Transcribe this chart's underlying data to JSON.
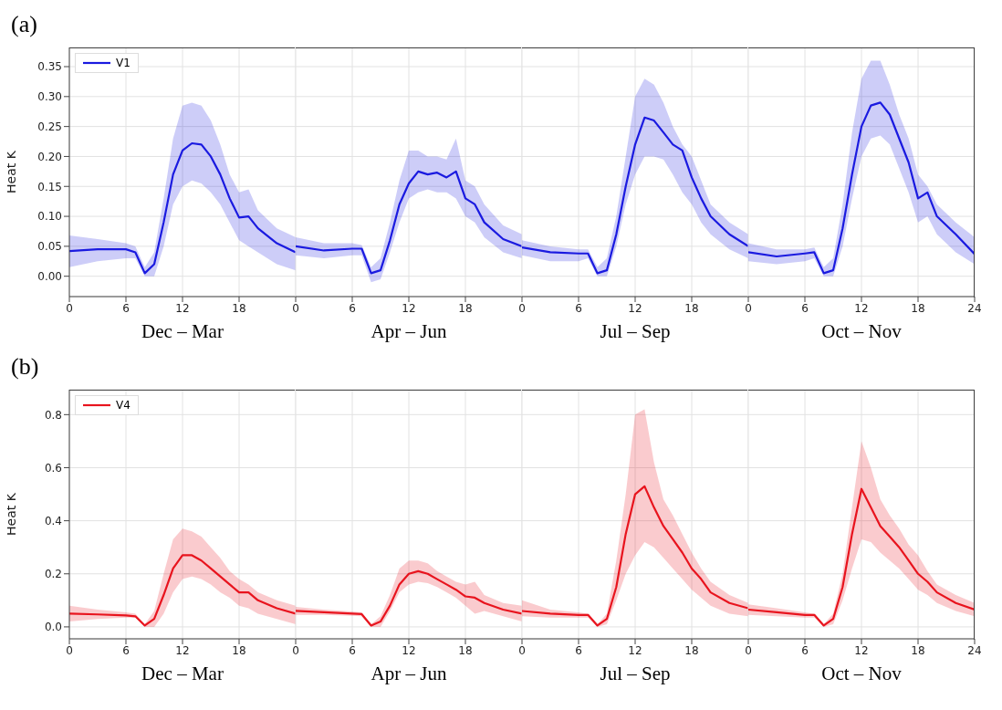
{
  "chart_data": [
    {
      "type": "line",
      "title": "(a)",
      "ylabel": "Heat K",
      "xlabel": "Dec – Mar",
      "ylim": [
        -0.034,
        0.382
      ],
      "yticks": [
        {
          "value": 0,
          "label": "0.00"
        },
        {
          "value": 0.05,
          "label": "0.05"
        },
        {
          "value": 0.1,
          "label": "0.10"
        },
        {
          "value": 0.15,
          "label": "0.15"
        },
        {
          "value": 0.2,
          "label": "0.20"
        },
        {
          "value": 0.25,
          "label": "0.25"
        },
        {
          "value": 0.3,
          "label": "0.30"
        },
        {
          "value": 0.35,
          "label": "0.35"
        }
      ],
      "xlim": [
        0,
        24
      ],
      "xticks": [
        0,
        6,
        12,
        18
      ],
      "x": [
        0,
        3,
        6,
        7,
        8,
        9,
        10,
        11,
        12,
        13,
        14,
        15,
        16,
        17,
        18,
        19,
        20,
        22,
        24
      ],
      "series": [
        {
          "name": "V1",
          "color": "#1a1ae0",
          "values": [
            0.042,
            0.045,
            0.045,
            0.04,
            0.005,
            0.02,
            0.09,
            0.17,
            0.21,
            0.222,
            0.22,
            0.2,
            0.17,
            0.13,
            0.098,
            0.1,
            0.08,
            0.055,
            0.04
          ],
          "lower": [
            0.015,
            0.025,
            0.03,
            0.03,
            0,
            0,
            0.05,
            0.12,
            0.15,
            0.16,
            0.155,
            0.14,
            0.12,
            0.09,
            0.06,
            0.05,
            0.04,
            0.02,
            0.01
          ],
          "upper": [
            0.068,
            0.062,
            0.055,
            0.05,
            0.015,
            0.04,
            0.13,
            0.23,
            0.285,
            0.29,
            0.285,
            0.26,
            0.22,
            0.17,
            0.14,
            0.145,
            0.11,
            0.08,
            0.065
          ]
        }
      ],
      "grid": true,
      "legend": "top left"
    },
    {
      "type": "line",
      "xlabel": "Apr – Jun",
      "ylim": [
        -0.034,
        0.382
      ],
      "yticks": [
        0,
        0.05,
        0.1,
        0.15,
        0.2,
        0.25,
        0.3,
        0.35
      ],
      "xlim": [
        0,
        24
      ],
      "xticks": [
        0,
        6,
        12,
        18
      ],
      "tick_labels": "x",
      "x": [
        0,
        3,
        6,
        7,
        8,
        9,
        10,
        11,
        12,
        13,
        14,
        15,
        16,
        17,
        18,
        19,
        20,
        22,
        24
      ],
      "series": [
        {
          "color": "#1a1ae0",
          "values": [
            0.05,
            0.043,
            0.046,
            0.046,
            0.005,
            0.01,
            0.06,
            0.12,
            0.155,
            0.175,
            0.17,
            0.173,
            0.165,
            0.175,
            0.13,
            0.12,
            0.09,
            0.062,
            0.05
          ],
          "lower": [
            0.035,
            0.03,
            0.035,
            0.035,
            -0.01,
            -0.005,
            0.04,
            0.09,
            0.13,
            0.14,
            0.145,
            0.14,
            0.14,
            0.13,
            0.1,
            0.09,
            0.065,
            0.04,
            0.03
          ],
          "upper": [
            0.065,
            0.055,
            0.055,
            0.052,
            0.015,
            0.03,
            0.09,
            0.16,
            0.21,
            0.21,
            0.2,
            0.2,
            0.195,
            0.23,
            0.16,
            0.15,
            0.12,
            0.085,
            0.07
          ]
        }
      ],
      "grid": true
    },
    {
      "type": "line",
      "xlabel": "Jul – Sep",
      "ylim": [
        -0.034,
        0.382
      ],
      "yticks": [
        0,
        0.05,
        0.1,
        0.15,
        0.2,
        0.25,
        0.3,
        0.35
      ],
      "xlim": [
        0,
        24
      ],
      "xticks": [
        0,
        6,
        12,
        18
      ],
      "tick_labels": "x",
      "x": [
        0,
        3,
        6,
        7,
        8,
        9,
        10,
        11,
        12,
        13,
        14,
        15,
        16,
        17,
        18,
        19,
        20,
        22,
        24
      ],
      "series": [
        {
          "color": "#1a1ae0",
          "values": [
            0.048,
            0.04,
            0.038,
            0.038,
            0.005,
            0.01,
            0.07,
            0.15,
            0.22,
            0.265,
            0.26,
            0.24,
            0.22,
            0.21,
            0.165,
            0.13,
            0.1,
            0.07,
            0.05
          ],
          "lower": [
            0.035,
            0.025,
            0.025,
            0.03,
            0,
            0,
            0.05,
            0.12,
            0.17,
            0.2,
            0.2,
            0.195,
            0.17,
            0.14,
            0.12,
            0.09,
            0.07,
            0.045,
            0.03
          ],
          "upper": [
            0.06,
            0.05,
            0.045,
            0.045,
            0.015,
            0.03,
            0.1,
            0.2,
            0.3,
            0.33,
            0.32,
            0.29,
            0.25,
            0.22,
            0.2,
            0.16,
            0.12,
            0.09,
            0.07
          ]
        }
      ],
      "grid": true
    },
    {
      "type": "line",
      "xlabel": "Oct – Nov",
      "ylim": [
        -0.034,
        0.382
      ],
      "yticks": [
        0,
        0.05,
        0.1,
        0.15,
        0.2,
        0.25,
        0.3,
        0.35
      ],
      "xlim": [
        0,
        24
      ],
      "xticks": [
        0,
        6,
        12,
        18,
        24
      ],
      "tick_labels": "x",
      "x": [
        0,
        3,
        6,
        7,
        8,
        9,
        10,
        11,
        12,
        13,
        14,
        15,
        16,
        17,
        18,
        19,
        20,
        22,
        24
      ],
      "series": [
        {
          "color": "#1a1ae0",
          "values": [
            0.04,
            0.033,
            0.038,
            0.04,
            0.005,
            0.01,
            0.08,
            0.17,
            0.25,
            0.285,
            0.29,
            0.27,
            0.23,
            0.19,
            0.13,
            0.14,
            0.1,
            0.07,
            0.037
          ],
          "lower": [
            0.025,
            0.02,
            0.025,
            0.03,
            0,
            0,
            0.05,
            0.13,
            0.2,
            0.23,
            0.235,
            0.22,
            0.18,
            0.14,
            0.09,
            0.1,
            0.07,
            0.04,
            0.02
          ],
          "upper": [
            0.055,
            0.045,
            0.045,
            0.048,
            0.015,
            0.03,
            0.12,
            0.24,
            0.33,
            0.36,
            0.36,
            0.32,
            0.27,
            0.23,
            0.17,
            0.15,
            0.12,
            0.09,
            0.065
          ]
        }
      ],
      "grid": true
    },
    {
      "type": "line",
      "title": "(b)",
      "ylabel": "Heat K",
      "xlabel": "Dec – Mar",
      "ylim": [
        -0.045,
        0.894
      ],
      "yticks": [
        {
          "value": 0,
          "label": "0.0"
        },
        {
          "value": 0.2,
          "label": "0.2"
        },
        {
          "value": 0.4,
          "label": "0.4"
        },
        {
          "value": 0.6,
          "label": "0.6"
        },
        {
          "value": 0.8,
          "label": "0.8"
        }
      ],
      "xlim": [
        0,
        24
      ],
      "xticks": [
        0,
        6,
        12,
        18
      ],
      "x": [
        0,
        3,
        6,
        7,
        8,
        9,
        10,
        11,
        12,
        13,
        14,
        15,
        16,
        17,
        18,
        19,
        20,
        22,
        24
      ],
      "series": [
        {
          "name": "V4",
          "color": "#e8141e",
          "values": [
            0.05,
            0.047,
            0.043,
            0.04,
            0.005,
            0.03,
            0.12,
            0.22,
            0.27,
            0.27,
            0.25,
            0.22,
            0.19,
            0.16,
            0.13,
            0.13,
            0.1,
            0.07,
            0.05
          ],
          "lower": [
            0.02,
            0.03,
            0.035,
            0.035,
            0,
            0,
            0.05,
            0.13,
            0.18,
            0.19,
            0.18,
            0.16,
            0.13,
            0.11,
            0.08,
            0.07,
            0.05,
            0.03,
            0.01
          ],
          "upper": [
            0.08,
            0.065,
            0.055,
            0.05,
            0.01,
            0.06,
            0.2,
            0.33,
            0.37,
            0.36,
            0.34,
            0.3,
            0.26,
            0.21,
            0.18,
            0.16,
            0.13,
            0.1,
            0.08
          ]
        }
      ],
      "grid": true,
      "legend": "top left"
    },
    {
      "type": "line",
      "xlabel": "Apr – Jun",
      "ylim": [
        -0.045,
        0.894
      ],
      "yticks": [
        0,
        0.2,
        0.4,
        0.6,
        0.8
      ],
      "xlim": [
        0,
        24
      ],
      "xticks": [
        0,
        6,
        12,
        18
      ],
      "tick_labels": "x",
      "x": [
        0,
        3,
        6,
        7,
        8,
        9,
        10,
        11,
        12,
        13,
        14,
        15,
        16,
        17,
        18,
        19,
        20,
        22,
        24
      ],
      "series": [
        {
          "color": "#e8141e",
          "values": [
            0.06,
            0.055,
            0.05,
            0.048,
            0.005,
            0.02,
            0.08,
            0.16,
            0.2,
            0.21,
            0.2,
            0.18,
            0.16,
            0.14,
            0.115,
            0.11,
            0.09,
            0.065,
            0.05
          ],
          "lower": [
            0.045,
            0.045,
            0.042,
            0.04,
            0,
            0,
            0.06,
            0.13,
            0.16,
            0.17,
            0.165,
            0.15,
            0.13,
            0.11,
            0.08,
            0.05,
            0.06,
            0.04,
            0.02
          ],
          "upper": [
            0.075,
            0.065,
            0.058,
            0.055,
            0.01,
            0.04,
            0.12,
            0.22,
            0.25,
            0.25,
            0.24,
            0.21,
            0.19,
            0.17,
            0.16,
            0.17,
            0.12,
            0.09,
            0.08
          ]
        }
      ],
      "grid": true
    },
    {
      "type": "line",
      "xlabel": "Jul – Sep",
      "ylim": [
        -0.045,
        0.894
      ],
      "yticks": [
        0,
        0.2,
        0.4,
        0.6,
        0.8
      ],
      "xlim": [
        0,
        24
      ],
      "xticks": [
        0,
        6,
        12,
        18
      ],
      "tick_labels": "x",
      "x": [
        0,
        3,
        6,
        7,
        8,
        9,
        10,
        11,
        12,
        13,
        14,
        15,
        16,
        17,
        18,
        19,
        20,
        22,
        24
      ],
      "series": [
        {
          "color": "#e8141e",
          "values": [
            0.06,
            0.05,
            0.045,
            0.045,
            0.005,
            0.03,
            0.15,
            0.35,
            0.5,
            0.53,
            0.45,
            0.38,
            0.33,
            0.28,
            0.22,
            0.18,
            0.13,
            0.09,
            0.07
          ],
          "lower": [
            0.04,
            0.035,
            0.035,
            0.035,
            0,
            0.01,
            0.1,
            0.2,
            0.27,
            0.32,
            0.3,
            0.26,
            0.22,
            0.18,
            0.14,
            0.11,
            0.08,
            0.05,
            0.04
          ],
          "upper": [
            0.1,
            0.065,
            0.055,
            0.05,
            0.01,
            0.05,
            0.25,
            0.5,
            0.8,
            0.82,
            0.62,
            0.48,
            0.42,
            0.35,
            0.28,
            0.22,
            0.17,
            0.12,
            0.09
          ]
        }
      ],
      "grid": true
    },
    {
      "type": "line",
      "xlabel": "Oct – Nov",
      "ylim": [
        -0.045,
        0.894
      ],
      "yticks": [
        0,
        0.2,
        0.4,
        0.6,
        0.8
      ],
      "xlim": [
        0,
        24
      ],
      "xticks": [
        0,
        6,
        12,
        18,
        24
      ],
      "tick_labels": "x",
      "x": [
        0,
        3,
        6,
        7,
        8,
        9,
        10,
        11,
        12,
        13,
        14,
        15,
        16,
        17,
        18,
        19,
        20,
        22,
        24
      ],
      "series": [
        {
          "color": "#e8141e",
          "values": [
            0.065,
            0.055,
            0.045,
            0.045,
            0.005,
            0.03,
            0.15,
            0.35,
            0.52,
            0.45,
            0.38,
            0.34,
            0.3,
            0.25,
            0.2,
            0.17,
            0.13,
            0.09,
            0.065
          ],
          "lower": [
            0.045,
            0.04,
            0.035,
            0.035,
            0,
            0.01,
            0.1,
            0.22,
            0.33,
            0.32,
            0.28,
            0.25,
            0.22,
            0.18,
            0.14,
            0.12,
            0.09,
            0.06,
            0.04
          ],
          "upper": [
            0.085,
            0.07,
            0.055,
            0.05,
            0.01,
            0.05,
            0.2,
            0.45,
            0.7,
            0.6,
            0.48,
            0.42,
            0.37,
            0.31,
            0.27,
            0.21,
            0.16,
            0.12,
            0.09
          ]
        }
      ],
      "grid": true
    }
  ]
}
